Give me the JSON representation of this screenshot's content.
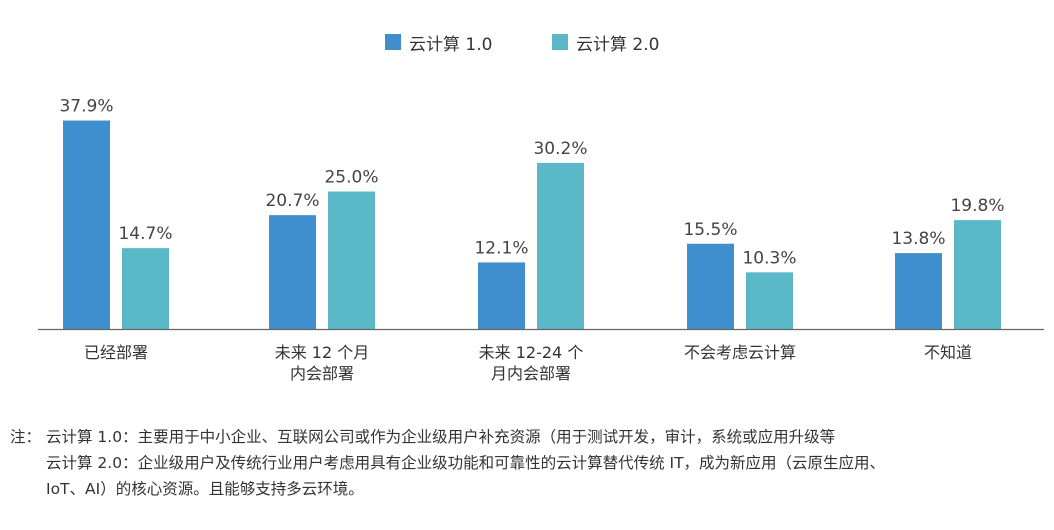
{
  "chart_data": {
    "type": "bar",
    "categories": [
      [
        "已经部署"
      ],
      [
        "未来 12 个月",
        "内会部署"
      ],
      [
        "未来 12-24 个",
        "月内会部署"
      ],
      [
        "不会考虑云计算"
      ],
      [
        "不知道"
      ]
    ],
    "series": [
      {
        "name": "云计算 1.0",
        "values": [
          37.9,
          20.7,
          12.1,
          15.5,
          13.8
        ],
        "labels": [
          "37.9%",
          "20.7%",
          "12.1%",
          "15.5%",
          "13.8%"
        ],
        "color": "#3f8fce"
      },
      {
        "name": "云计算 2.0",
        "values": [
          14.7,
          25.0,
          30.2,
          10.3,
          19.8
        ],
        "labels": [
          "14.7%",
          "25.0%",
          "30.2%",
          "10.3%",
          "19.8%"
        ],
        "color": "#5ab8c8"
      }
    ],
    "ylim": [
      0,
      40
    ],
    "grid": false,
    "legend": "top-center",
    "axis_color": "#666666"
  },
  "notes": {
    "prefix": "注：",
    "line1": "云计算 1.0：主要用于中小企业、互联网公司或作为企业级用户补充资源（用于测试开发，审计，系统或应用升级等",
    "line2": "云计算 2.0：企业级用户及传统行业用户考虑用具有企业级功能和可靠性的云计算替代传统 IT，成为新应用（云原生应用、",
    "line3": "IoT、AI）的核心资源。且能够支持多云环境。"
  }
}
